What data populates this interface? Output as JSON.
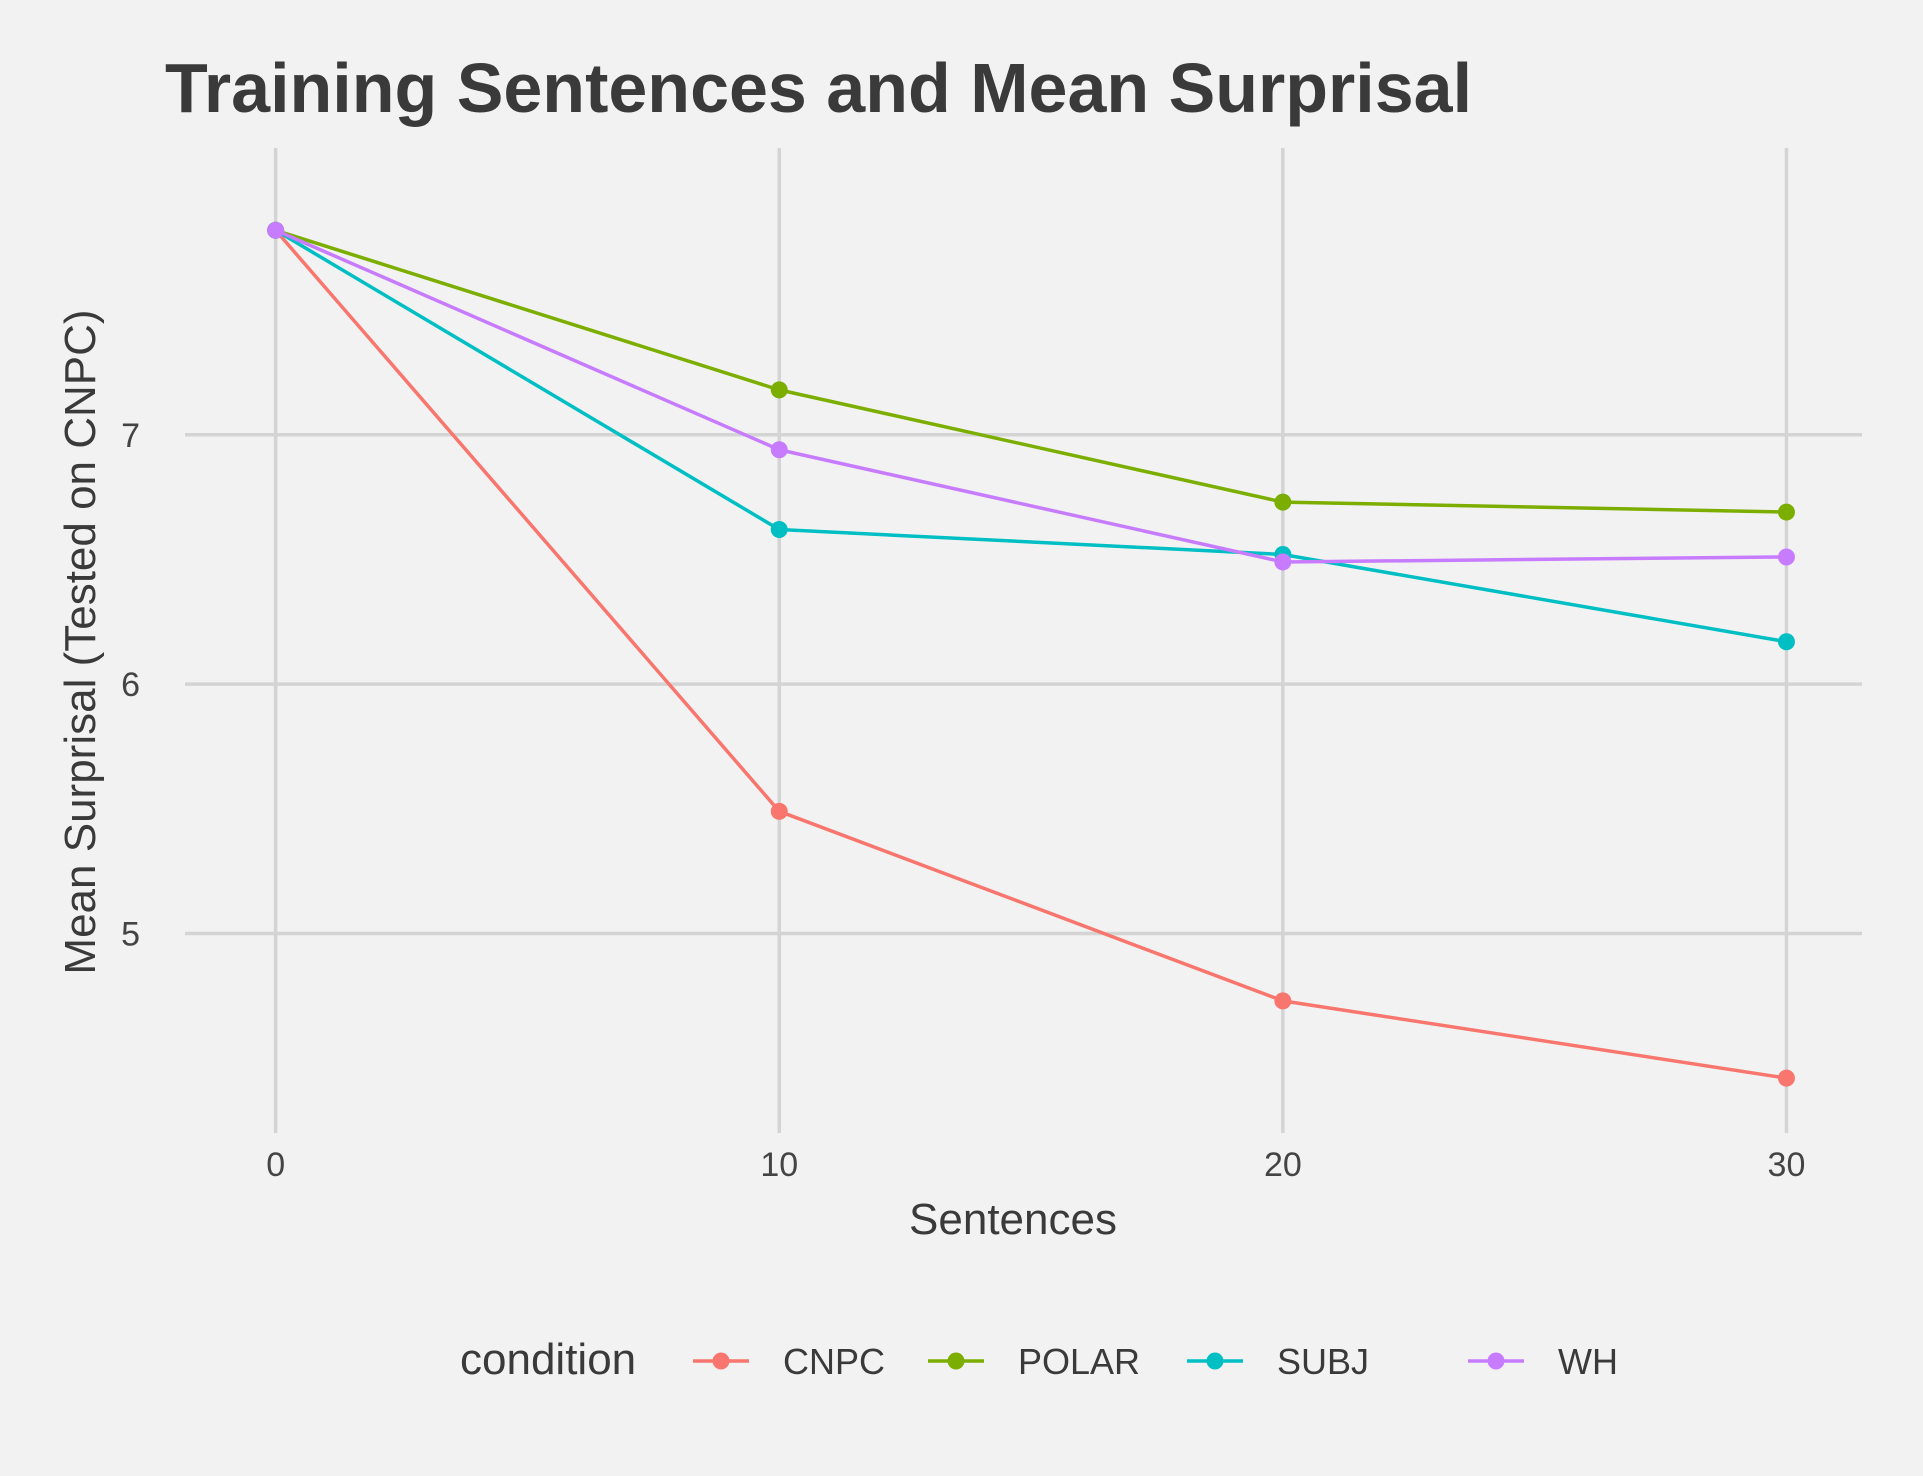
{
  "chart_data": {
    "type": "line",
    "title": "Training Sentences and Mean Surprisal",
    "xlabel": "Sentences",
    "ylabel": "Mean Surprisal (Tested on CNPC)",
    "x": [
      0,
      10,
      20,
      30
    ],
    "xticks": [
      0,
      10,
      20,
      30
    ],
    "yticks": [
      5,
      6,
      7
    ],
    "xlim": [
      -1.8,
      31.5
    ],
    "ylim": [
      4.2,
      8.15
    ],
    "grid": true,
    "legend": {
      "title": "condition",
      "position": "bottom"
    },
    "series": [
      {
        "name": "CNPC",
        "color": "#f8766d",
        "values": [
          7.82,
          5.49,
          4.73,
          4.42
        ]
      },
      {
        "name": "POLAR",
        "color": "#7cae00",
        "values": [
          7.82,
          7.18,
          6.73,
          6.69
        ]
      },
      {
        "name": "SUBJ",
        "color": "#00bfc4",
        "values": [
          7.82,
          6.62,
          6.52,
          6.17
        ]
      },
      {
        "name": "WH",
        "color": "#c77cff",
        "values": [
          7.82,
          6.94,
          6.49,
          6.51
        ]
      }
    ]
  }
}
